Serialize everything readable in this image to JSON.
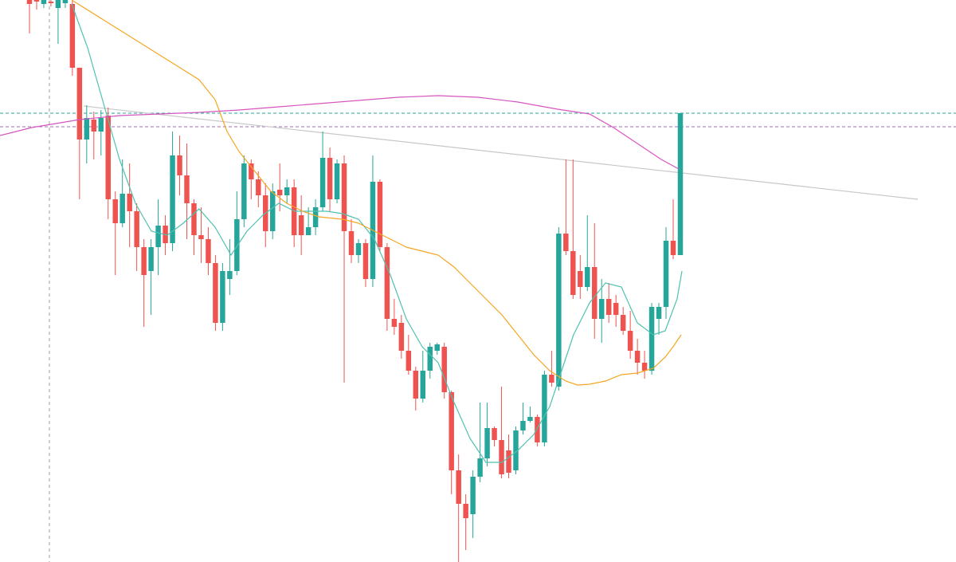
{
  "chart_data": {
    "type": "candlestick",
    "xlim": [
      -4.12,
      129.54
    ],
    "ylim": [
      0,
      705
    ],
    "up_color": "#26a69a",
    "down_color": "#ef5350",
    "open": [
      705,
      705,
      700,
      703,
      695,
      701,
      700,
      620,
      530,
      555,
      540,
      560,
      455,
      425,
      462,
      440,
      395,
      365,
      395,
      422,
      400,
      510,
      485,
      450,
      410,
      405,
      375,
      300,
      355,
      365,
      430,
      500,
      480,
      460,
      415,
      467,
      460,
      470,
      435,
      410,
      420,
      445,
      507,
      455,
      500,
      415,
      385,
      400,
      355,
      477,
      395,
      305,
      300,
      265,
      240,
      205,
      240,
      265,
      270,
      213,
      115,
      73,
      60,
      107,
      130,
      168,
      153,
      140,
      115,
      165,
      177,
      182,
      150,
      235,
      220,
      412,
      390,
      365,
      345,
      370,
      305,
      330,
      325,
      310,
      290,
      265,
      250,
      240,
      305,
      320,
      403,
      385
    ],
    "high": [
      705,
      705,
      705,
      705,
      705,
      705,
      705,
      620,
      573,
      565,
      567,
      570,
      465,
      505,
      500,
      450,
      405,
      405,
      455,
      435,
      540,
      535,
      525,
      455,
      445,
      420,
      385,
      375,
      405,
      465,
      510,
      505,
      490,
      475,
      475,
      500,
      480,
      480,
      460,
      445,
      455,
      540,
      520,
      505,
      510,
      430,
      405,
      405,
      510,
      480,
      400,
      330,
      310,
      285,
      245,
      265,
      275,
      275,
      275,
      215,
      135,
      85,
      115,
      200,
      200,
      170,
      220,
      160,
      170,
      200,
      195,
      185,
      240,
      265,
      420,
      505,
      505,
      385,
      435,
      425,
      355,
      350,
      335,
      320,
      315,
      280,
      265,
      325,
      325,
      420,
      455,
      563
    ],
    "low": [
      663,
      693,
      695,
      697,
      650,
      695,
      610,
      455,
      500,
      505,
      510,
      430,
      360,
      420,
      395,
      365,
      295,
      310,
      360,
      385,
      390,
      460,
      405,
      385,
      375,
      360,
      290,
      290,
      335,
      360,
      420,
      455,
      445,
      395,
      405,
      440,
      450,
      395,
      385,
      410,
      410,
      440,
      440,
      450,
      225,
      375,
      375,
      345,
      345,
      390,
      290,
      285,
      255,
      235,
      190,
      200,
      230,
      260,
      205,
      85,
      0,
      15,
      30,
      100,
      120,
      145,
      105,
      105,
      110,
      160,
      175,
      145,
      145,
      220,
      215,
      385,
      330,
      330,
      340,
      280,
      275,
      300,
      295,
      285,
      255,
      235,
      230,
      235,
      285,
      305,
      380,
      385
    ],
    "close": [
      700,
      703,
      705,
      701,
      705,
      705,
      620,
      530,
      557,
      540,
      557,
      455,
      425,
      462,
      440,
      395,
      360,
      395,
      422,
      400,
      510,
      485,
      450,
      410,
      405,
      375,
      300,
      365,
      365,
      430,
      500,
      480,
      460,
      415,
      465,
      460,
      470,
      410,
      410,
      420,
      445,
      507,
      455,
      500,
      415,
      385,
      400,
      355,
      477,
      395,
      305,
      295,
      265,
      240,
      205,
      240,
      270,
      273,
      213,
      115,
      73,
      55,
      107,
      130,
      168,
      153,
      110,
      112,
      165,
      177,
      182,
      150,
      235,
      225,
      412,
      390,
      335,
      345,
      370,
      305,
      330,
      310,
      310,
      290,
      265,
      250,
      240,
      320,
      320,
      403,
      385,
      563
    ],
    "lines": [
      {
        "color": "#4fc1b0",
        "x": [
          5.9,
          8.13,
          10.36,
          12.59,
          14.81,
          17.04,
          19.27,
          21.5,
          23.72,
          25.95,
          28.18,
          30.41,
          32.63,
          34.86,
          37.09,
          39.32,
          41.55,
          43.77,
          46,
          48.23,
          50.46,
          52.68,
          54.91,
          57.14,
          59.37,
          61.6,
          63.82,
          66.05,
          68.28,
          70.51,
          72.73,
          74.4,
          76.07,
          78.3,
          80.53,
          82.76,
          84.99,
          87.21,
          88.88,
          90.55,
          91.22
        ],
        "values": [
          700,
          645,
          575,
          505,
          450,
          415,
          410,
          425,
          443,
          420,
          385,
          415,
          435,
          450,
          440,
          440,
          440,
          437,
          430,
          405,
          360,
          305,
          270,
          250,
          200,
          155,
          125,
          125,
          140,
          160,
          195,
          240,
          285,
          325,
          350,
          345,
          300,
          285,
          290,
          330,
          365
        ]
      },
      {
        "color": "#f5a623",
        "x": [
          5.9,
          10.36,
          14.81,
          19.27,
          23.72,
          25.95,
          27.62,
          29.29,
          31.52,
          33.75,
          35.97,
          38.2,
          40.43,
          43.77,
          46,
          48.23,
          50.46,
          52.68,
          54.91,
          57.14,
          59.37,
          61.6,
          63.82,
          66.05,
          68.28,
          70.51,
          72.73,
          74.96,
          76.63,
          78.3,
          80.53,
          82.76,
          84.99,
          87.21,
          88.88,
          89.99,
          91.11
        ],
        "values": [
          705,
          680,
          655,
          630,
          605,
          580,
          540,
          515,
          490,
          465,
          450,
          440,
          433,
          430,
          425,
          415,
          405,
          395,
          390,
          385,
          370,
          350,
          330,
          310,
          285,
          260,
          240,
          227,
          222,
          223,
          227,
          235,
          237,
          243,
          257,
          270,
          285
        ]
      },
      {
        "color": "#d655c0",
        "x": [
          -4.12,
          0.33,
          7.02,
          12.59,
          18.15,
          23.72,
          29.29,
          34.86,
          40.43,
          46,
          51.57,
          57.14,
          62.71,
          68.28,
          73.85,
          78.3,
          81.64,
          84.99,
          88.33,
          90.78
        ],
        "values": [
          535,
          545,
          555,
          560,
          562,
          564,
          567,
          571,
          575,
          579,
          583,
          585,
          583,
          577,
          568,
          562,
          545,
          525,
          505,
          493
        ]
      }
    ],
    "trendline": {
      "color": "#c8c8c8",
      "x": [
        7.57,
        124.19
      ],
      "values": [
        572,
        455
      ]
    },
    "hlines": [
      {
        "value": 563,
        "color": "#26a69a"
      },
      {
        "value": 546,
        "color": "#9c6fb5"
      }
    ],
    "vline": {
      "value": 2.78,
      "color": "#9aa0a6"
    }
  }
}
